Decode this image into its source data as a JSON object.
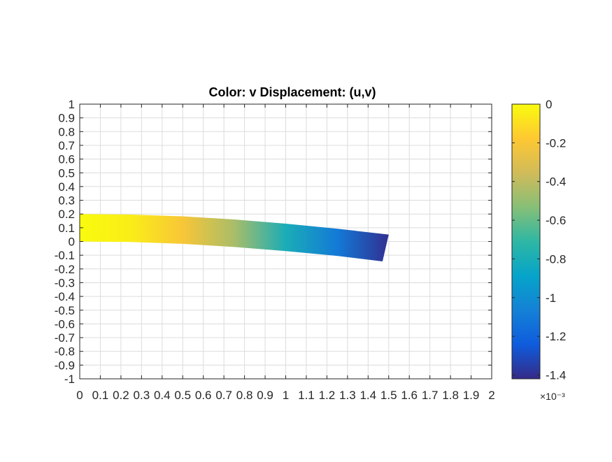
{
  "chart_data": {
    "type": "heatmap",
    "title": "Color: v  Displacement: (u,v)",
    "xlabel": "",
    "ylabel": "",
    "xlim": [
      0,
      2
    ],
    "ylim": [
      -1,
      1
    ],
    "x_ticks": [
      0,
      0.1,
      0.2,
      0.3,
      0.4,
      0.5,
      0.6,
      0.7,
      0.8,
      0.9,
      1,
      1.1,
      1.2,
      1.3,
      1.4,
      1.5,
      1.6,
      1.7,
      1.8,
      1.9,
      2
    ],
    "x_tick_labels": [
      "0",
      "0.1",
      "0.2",
      "0.3",
      "0.4",
      "0.5",
      "0.6",
      "0.7",
      "0.8",
      "0.9",
      "1",
      "1.1",
      "1.2",
      "1.3",
      "1.4",
      "1.5",
      "1.6",
      "1.7",
      "1.8",
      "1.9",
      "2"
    ],
    "y_ticks": [
      1,
      0.9,
      0.8,
      0.7,
      0.6,
      0.5,
      0.4,
      0.3,
      0.2,
      0.1,
      0,
      -0.1,
      -0.2,
      -0.3,
      -0.4,
      -0.5,
      -0.6,
      -0.7,
      -0.8,
      -0.9,
      -1
    ],
    "y_tick_labels": [
      "1",
      "0.9",
      "0.8",
      "0.7",
      "0.6",
      "0.5",
      "0.4",
      "0.3",
      "0.2",
      "0.1",
      "0",
      "-0.1",
      "-0.2",
      "-0.3",
      "-0.4",
      "-0.5",
      "-0.6",
      "-0.7",
      "-0.8",
      "-0.9",
      "-1"
    ],
    "grid": true,
    "beam": {
      "x_top": [
        0,
        0.25,
        0.5,
        0.75,
        1.0,
        1.25,
        1.5
      ],
      "y_top": [
        0.2,
        0.196,
        0.183,
        0.16,
        0.13,
        0.093,
        0.05
      ],
      "x_bottom": [
        0,
        0.25,
        0.5,
        0.75,
        1.0,
        1.25,
        1.47
      ],
      "y_bottom": [
        0.0,
        -0.004,
        -0.017,
        -0.04,
        -0.07,
        -0.105,
        -0.145
      ],
      "v_values": [
        0,
        -5e-05,
        -0.0002,
        -0.00045,
        -0.0008,
        -0.0011,
        -0.0014
      ]
    },
    "colorbar": {
      "range": [
        -0.00142,
        0
      ],
      "ticks": [
        0,
        -0.2,
        -0.4,
        -0.6,
        -0.8,
        -1,
        -1.2,
        -1.4
      ],
      "tick_labels": [
        "0",
        "-0.2",
        "-0.4",
        "-0.6",
        "-0.8",
        "-1",
        "-1.2",
        "-1.4"
      ],
      "exponent_label": "×10⁻³",
      "colormap": [
        "#352a87",
        "#0f5cdd",
        "#1481d6",
        "#06a4ca",
        "#2eb7a4",
        "#87bf77",
        "#d1bb59",
        "#fec832",
        "#f9fb0e"
      ]
    }
  }
}
